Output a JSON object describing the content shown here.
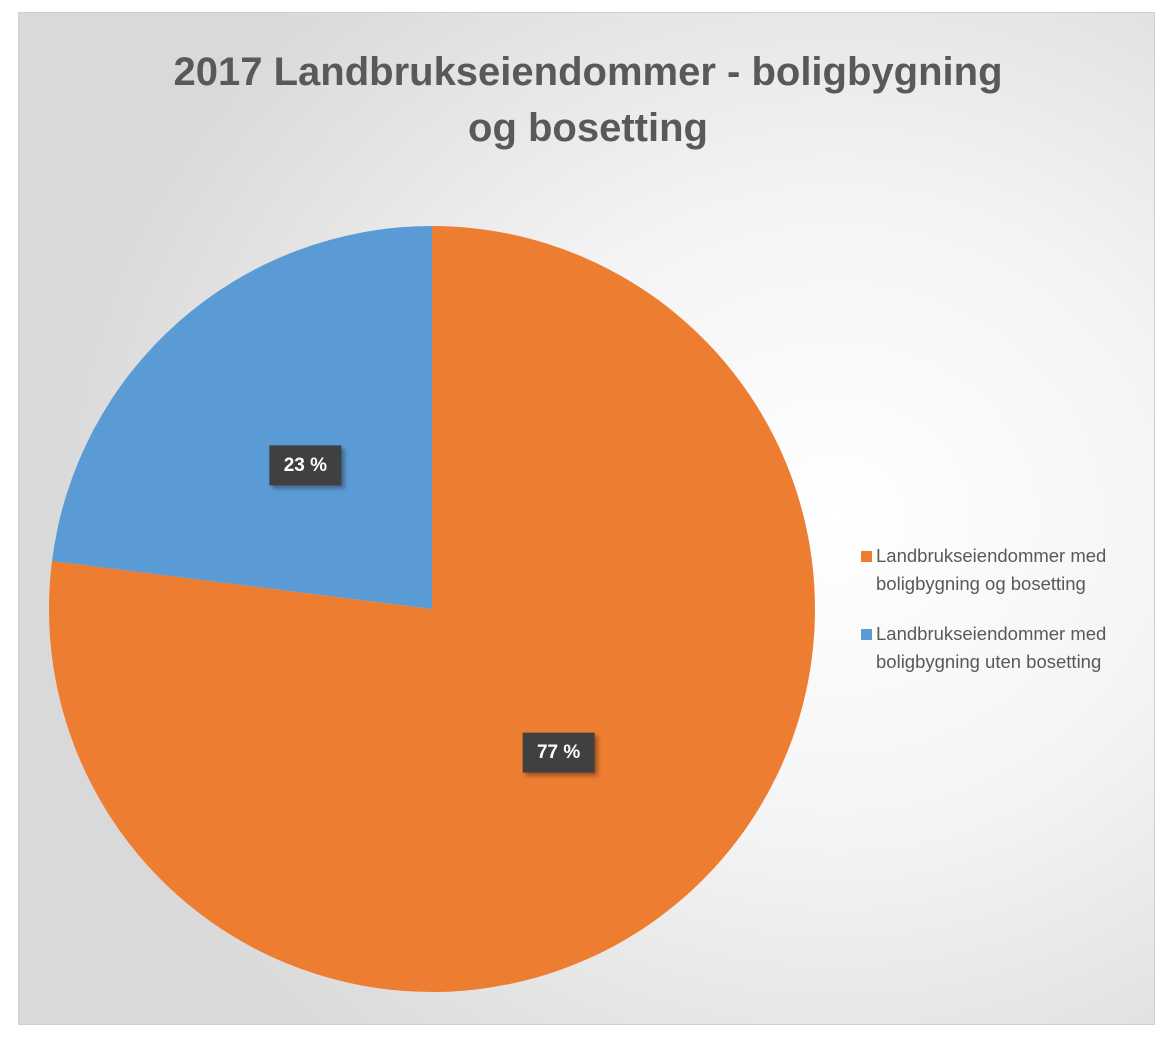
{
  "chart_data": {
    "type": "pie",
    "title": "2017 Landbrukseiendommer - boligbygning og bosetting",
    "categories": [
      "Landbrukseiendommer med boligbygning og bosetting",
      "Landbrukseiendommer med boligbygning uten bosetting"
    ],
    "values": [
      77,
      23
    ],
    "value_labels": [
      "77 %",
      "23 %"
    ],
    "colors": [
      "#ED7D31",
      "#5B9BD5"
    ],
    "legend": "right"
  }
}
